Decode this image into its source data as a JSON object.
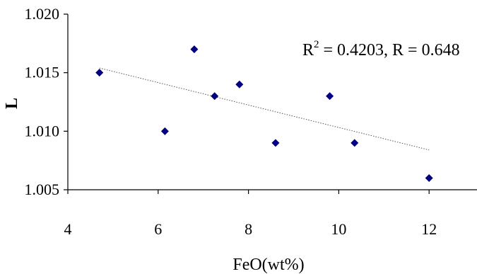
{
  "chart_data": {
    "type": "scatter",
    "xlabel": "FeO(wt%)",
    "ylabel": "L",
    "xlim": [
      4,
      12.8
    ],
    "ylim": [
      1.005,
      1.02
    ],
    "x_ticks": [
      4,
      6,
      8,
      10,
      12
    ],
    "x_tick_labels": [
      "4",
      "6",
      "8",
      "10",
      "12"
    ],
    "y_ticks": [
      1.005,
      1.01,
      1.015,
      1.02
    ],
    "y_tick_labels": [
      "1.005",
      "1.010",
      "1.015",
      "1.020"
    ],
    "grid": false,
    "annotation": {
      "r_symbol": "R",
      "r_sup": "2",
      "rest": " = 0.4203, R = 0.648"
    },
    "marker_color": "#000080",
    "trendline_color": "#555555",
    "trendline": {
      "x": [
        4.7,
        12.0
      ],
      "y": [
        1.0154,
        1.0084
      ]
    },
    "series": [
      {
        "points": [
          {
            "x": 4.7,
            "y": 1.015
          },
          {
            "x": 6.15,
            "y": 1.01
          },
          {
            "x": 6.8,
            "y": 1.017
          },
          {
            "x": 7.25,
            "y": 1.013
          },
          {
            "x": 7.8,
            "y": 1.014
          },
          {
            "x": 8.6,
            "y": 1.009
          },
          {
            "x": 9.8,
            "y": 1.013
          },
          {
            "x": 10.35,
            "y": 1.009
          },
          {
            "x": 12.0,
            "y": 1.006
          }
        ]
      }
    ]
  }
}
